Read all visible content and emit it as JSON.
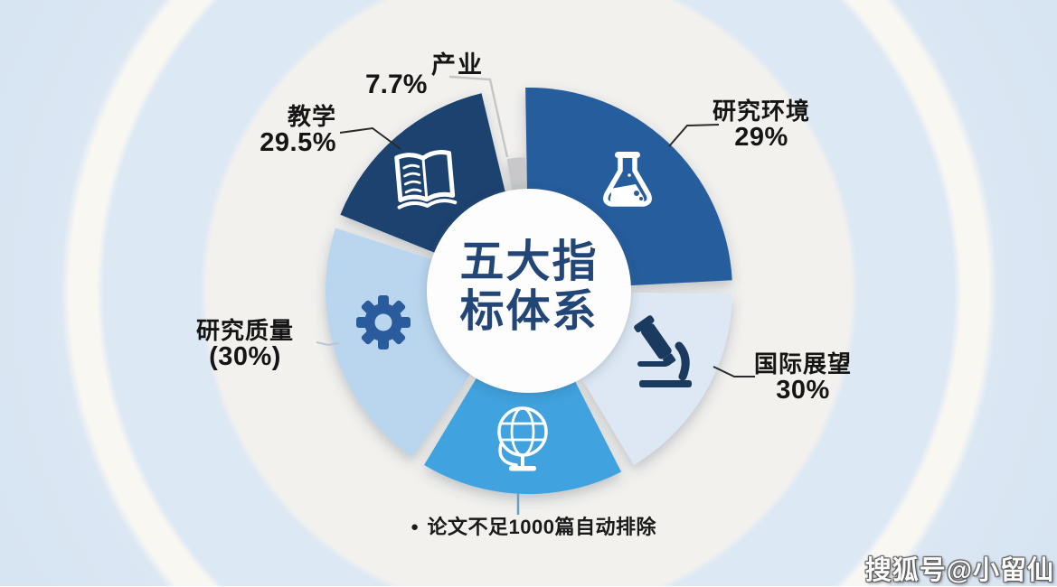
{
  "page": {
    "watermark": "搜狐号@小留仙"
  },
  "center_title": {
    "line1": "五大指",
    "line2": "标体系"
  },
  "note": {
    "bullet": "●",
    "text": "论文不足1000篇自动排除"
  },
  "chart_data": {
    "type": "pie",
    "style": "donut-infographic",
    "title": "五大指标体系",
    "unit": "%",
    "annotation": "论文不足1000篇自动排除",
    "title_color": "#234678",
    "background_rings": [
      "#f2f1ee",
      "#dce8f4",
      "#f8f7f2",
      "#dbe7f3"
    ],
    "segments": [
      {
        "id": "chanye",
        "label": "产业",
        "value": 7.7,
        "display": "7.7%",
        "color": "#c8c8ca",
        "icon": null,
        "geometry": {
          "start": 350.5,
          "end": 358.5,
          "inner": 112,
          "outer": 148
        }
      },
      {
        "id": "yanjiu-huanjing",
        "label": "研究环境",
        "value": 29,
        "display": "29%",
        "color": "#275d9d",
        "icon": "flask",
        "geometry": {
          "start": -1,
          "end": 87,
          "inner": 112,
          "outer": 225
        }
      },
      {
        "id": "guoji-zhanwang",
        "label": "国际展望",
        "value": 30,
        "display": "30%",
        "color": "#dde8f4",
        "icon": "microscope",
        "geometry": {
          "start": 91,
          "end": 149,
          "inner": 112,
          "outer": 225
        }
      },
      {
        "id": "globe-segment",
        "label": "",
        "value": null,
        "display": "",
        "color": "#41a2de",
        "icon": "globe",
        "geometry": {
          "start": 153,
          "end": 211,
          "inner": 112,
          "outer": 225
        }
      },
      {
        "id": "yanjiu-zhiliang",
        "label": "研究质量",
        "value": 30,
        "display": "(30%)",
        "color": "#bad6ef",
        "icon": "gear",
        "geometry": {
          "start": 215,
          "end": 288,
          "inner": 112,
          "outer": 225
        }
      },
      {
        "id": "jiaoxue",
        "label": "教学",
        "value": 29.5,
        "display": "29.5%",
        "color": "#1d4270",
        "icon": "book",
        "geometry": {
          "start": 292,
          "end": 346.5,
          "inner": 112,
          "outer": 225
        }
      }
    ]
  }
}
